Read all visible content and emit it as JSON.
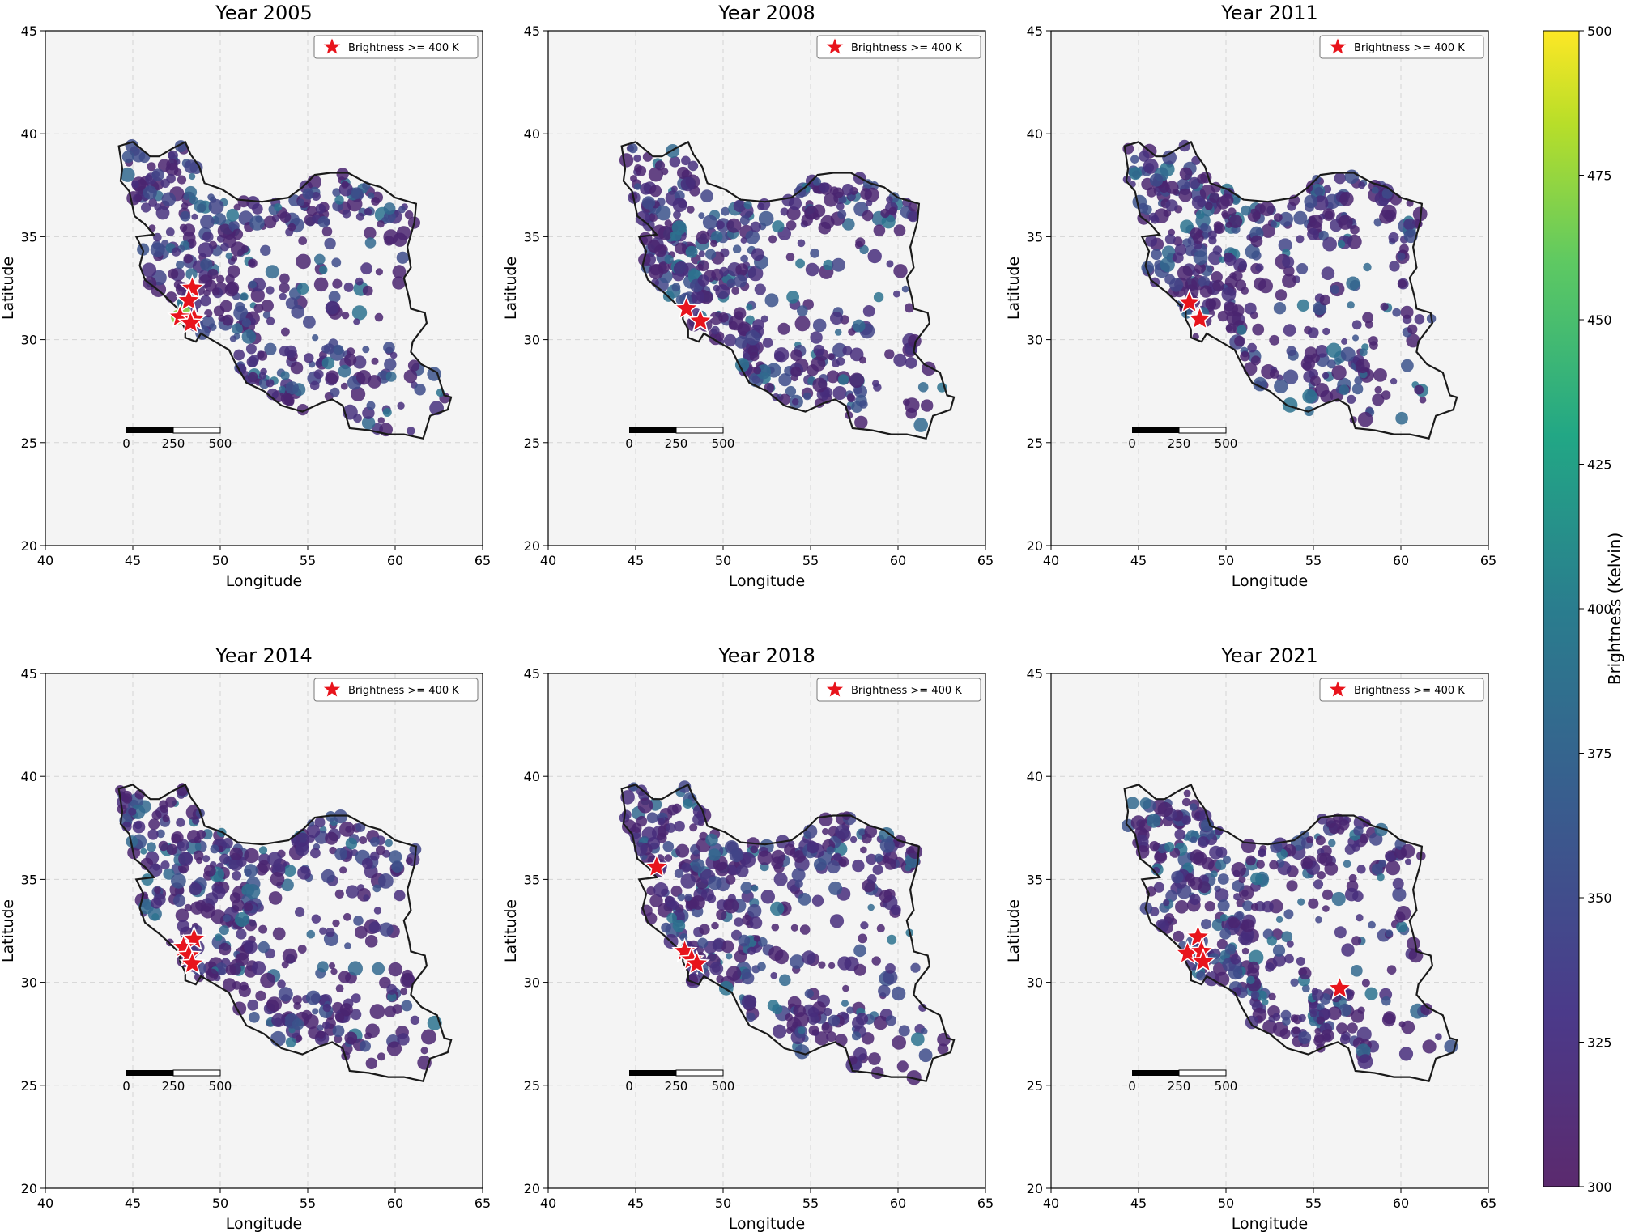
{
  "chart_data": {
    "type": "scatter",
    "color_scale": {
      "label": "Brightness (Kelvin)",
      "min": 300,
      "max": 500,
      "ticks": [
        300,
        325,
        350,
        375,
        400,
        425,
        450,
        475,
        500
      ],
      "colormap": "viridis"
    },
    "legend_label": "Brightness >= 400 K",
    "legend_placement": "top-right",
    "marker_color": "#e8141c",
    "xlabel": "Longitude",
    "ylabel": "Latitude",
    "xlim": [
      40,
      65
    ],
    "ylim": [
      20,
      45
    ],
    "xticks": [
      40,
      45,
      50,
      55,
      60,
      65
    ],
    "yticks": [
      20,
      25,
      30,
      35,
      40,
      45
    ],
    "grid": true,
    "scalebar_labels": [
      "0",
      "250",
      "500"
    ],
    "panels": [
      {
        "title": "Year 2005",
        "stars": [
          [
            48.4,
            32.5
          ],
          [
            48.2,
            31.9
          ],
          [
            47.7,
            31.1
          ],
          [
            48.5,
            31.0
          ],
          [
            48.3,
            30.8
          ]
        ],
        "highlights": [
          [
            47.6,
            31.1
          ],
          [
            47.9,
            31.3
          ]
        ]
      },
      {
        "title": "Year 2008",
        "stars": [
          [
            47.9,
            31.5
          ],
          [
            48.7,
            30.9
          ]
        ],
        "highlights": []
      },
      {
        "title": "Year 2011",
        "stars": [
          [
            47.9,
            31.8
          ],
          [
            48.5,
            31.0
          ]
        ],
        "highlights": []
      },
      {
        "title": "Year 2014",
        "stars": [
          [
            48.5,
            32.1
          ],
          [
            47.9,
            31.7
          ],
          [
            48.2,
            31.3
          ],
          [
            48.4,
            30.9
          ]
        ],
        "highlights": []
      },
      {
        "title": "Year 2018",
        "stars": [
          [
            46.2,
            35.6
          ],
          [
            47.8,
            31.5
          ],
          [
            48.2,
            31.1
          ],
          [
            48.5,
            30.9
          ]
        ],
        "highlights": []
      },
      {
        "title": "Year 2021",
        "stars": [
          [
            48.4,
            32.2
          ],
          [
            47.8,
            31.4
          ],
          [
            48.6,
            31.5
          ],
          [
            48.7,
            31.0
          ],
          [
            56.5,
            29.7
          ]
        ],
        "highlights": []
      }
    ]
  }
}
